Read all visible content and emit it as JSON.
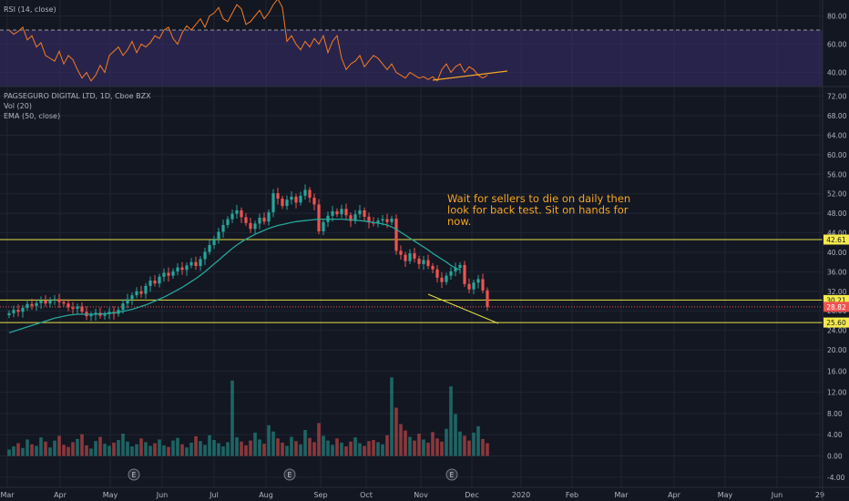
{
  "colors": {
    "background": "#131722",
    "grid": "#1f2533",
    "axis_text": "#b2b5be",
    "up": "#26a69a",
    "down": "#ef5350",
    "ema": "#26a69a",
    "rsi": "#f57b22",
    "rsi_band": "#3b2d6b",
    "level_line": "#e6e045",
    "annotation": "#f5a623",
    "price_tag": "#f5eb4a",
    "last_tag": "#ef5350"
  },
  "legend": {
    "rsi": "RSI (14, close)",
    "symbol": "PAGSEGURO DIGITAL LTD, 1D, Cboe BZX",
    "vol": "Vol (20)",
    "ema": "EMA (50, close)"
  },
  "annotation": {
    "lines": [
      "Wait for sellers to die on daily then",
      "look for back test. Sit on hands for",
      "now."
    ]
  },
  "chart_data": [
    {
      "type": "line",
      "name": "rsi-pane",
      "title": "RSI (14, close)",
      "ylim": [
        30,
        90
      ],
      "yticks": [
        "80.00",
        "60.00",
        "40.00"
      ],
      "ytick_values": [
        80,
        60,
        40
      ],
      "band": [
        30,
        70
      ],
      "series": [
        {
          "values": [
            70,
            67,
            69,
            72,
            63,
            66,
            58,
            61,
            52,
            50,
            48,
            55,
            46,
            52,
            49,
            42,
            36,
            40,
            34,
            38,
            45,
            40,
            52,
            55,
            58,
            52,
            56,
            62,
            54,
            60,
            58,
            61,
            66,
            64,
            70,
            72,
            64,
            60,
            68,
            73,
            70,
            74,
            78,
            72,
            80,
            82,
            86,
            78,
            76,
            82,
            88,
            85,
            74,
            76,
            80,
            84,
            78,
            82,
            88,
            92,
            86,
            62,
            66,
            60,
            56,
            62,
            58,
            64,
            60,
            66,
            54,
            62,
            66,
            50,
            42,
            46,
            48,
            52,
            44,
            48,
            52,
            50,
            46,
            42,
            46,
            40,
            38,
            36,
            40,
            38,
            36,
            37,
            35,
            37,
            34,
            42,
            46,
            40,
            44,
            46,
            40,
            44,
            42,
            38,
            36,
            38
          ]
        }
      ]
    },
    {
      "type": "candlestick",
      "name": "price-pane",
      "title": "PAGSEGURO DIGITAL LTD, 1D, Cboe BZX",
      "ylim": [
        17.4,
        73.8
      ],
      "yticks": [
        "72.00",
        "68.00",
        "64.00",
        "60.00",
        "56.00",
        "52.00",
        "48.00",
        "44.00",
        "40.00",
        "36.00",
        "32.00",
        "28.00",
        "24.00",
        "20.00"
      ],
      "ytick_values": [
        72,
        68,
        64,
        60,
        56,
        52,
        48,
        44,
        40,
        36,
        32,
        28,
        24,
        20
      ],
      "x_labels": [
        "Mar",
        "Apr",
        "May",
        "Jun",
        "Jul",
        "Aug",
        "Sep",
        "Oct",
        "Nov",
        "Dec",
        "2020",
        "Feb",
        "Mar",
        "Apr",
        "May",
        "Jun",
        "29"
      ],
      "horizontal_levels": [
        {
          "value": 42.61,
          "label": "42.61"
        },
        {
          "value": 30.21,
          "label": "30.21"
        },
        {
          "value": 25.6,
          "label": "25.60"
        }
      ],
      "last_price": {
        "value": 28.82,
        "label": "28.82"
      },
      "close": [
        27.5,
        28.2,
        27.8,
        28.6,
        29.4,
        29.0,
        29.6,
        30.1,
        29.5,
        30.2,
        30.4,
        29.8,
        29.5,
        28.7,
        28.4,
        28.9,
        27.8,
        26.9,
        27.2,
        27.6,
        27.0,
        27.3,
        27.8,
        27.4,
        28.2,
        29.5,
        30.4,
        31.2,
        32.0,
        31.5,
        33.1,
        34.2,
        33.6,
        35.0,
        35.8,
        35.2,
        36.1,
        36.9,
        36.4,
        37.3,
        38.0,
        37.2,
        38.6,
        40.1,
        41.5,
        42.8,
        44.2,
        45.6,
        46.8,
        47.9,
        48.6,
        47.2,
        46.0,
        44.8,
        45.9,
        47.1,
        46.3,
        48.2,
        52.1,
        51.0,
        49.5,
        50.8,
        51.4,
        50.2,
        51.6,
        52.8,
        51.2,
        49.8,
        44.3,
        46.2,
        47.5,
        48.4,
        47.8,
        48.9,
        47.6,
        46.4,
        47.8,
        48.6,
        47.3,
        46.1,
        45.9,
        46.5,
        46.8,
        46.2,
        46.9,
        40.3,
        39.5,
        38.2,
        39.8,
        38.7,
        37.6,
        38.4,
        37.2,
        36.5,
        34.8,
        33.9,
        35.2,
        36.1,
        36.8,
        37.4,
        33.5,
        32.4,
        33.8,
        34.5,
        32.2,
        28.8
      ],
      "ema_50": [
        23.5,
        23.8,
        24.1,
        24.4,
        24.7,
        25.0,
        25.3,
        25.6,
        25.9,
        26.2,
        26.5,
        26.7,
        26.9,
        27.1,
        27.2,
        27.3,
        27.3,
        27.3,
        27.3,
        27.3,
        27.4,
        27.4,
        27.5,
        27.6,
        27.7,
        27.9,
        28.1,
        28.3,
        28.6,
        28.9,
        29.2,
        29.6,
        30.0,
        30.4,
        30.8,
        31.3,
        31.8,
        32.3,
        32.8,
        33.4,
        34.0,
        34.6,
        35.3,
        36.0,
        36.8,
        37.6,
        38.4,
        39.2,
        40.0,
        40.8,
        41.5,
        42.1,
        42.7,
        43.2,
        43.7,
        44.1,
        44.5,
        44.9,
        45.2,
        45.5,
        45.7,
        45.9,
        46.1,
        46.3,
        46.4,
        46.5,
        46.6,
        46.7,
        46.8,
        46.8,
        46.8,
        46.8,
        46.8,
        46.8,
        46.7,
        46.7,
        46.6,
        46.5,
        46.4,
        46.3,
        46.1,
        46.0,
        45.8,
        45.6,
        45.2,
        44.7,
        44.1,
        43.5,
        42.9,
        42.3,
        41.7,
        41.1,
        40.5,
        39.8,
        39.2,
        38.6,
        38.0,
        37.3,
        36.8,
        36.4
      ]
    },
    {
      "type": "bar",
      "name": "volume-pane",
      "title": "Vol (20)",
      "ylim": [
        -5.4,
        17.6
      ],
      "yticks": [
        "16.00",
        "12.00",
        "8.00",
        "4.00",
        "0.00",
        "-4.00"
      ],
      "ytick_values": [
        16,
        12,
        8,
        4,
        0,
        -4
      ],
      "values": [
        1.2,
        1.8,
        2.4,
        1.5,
        3.1,
        2.2,
        1.9,
        3.5,
        2.7,
        1.6,
        2.9,
        3.8,
        2.1,
        1.7,
        2.6,
        3.2,
        4.1,
        2.0,
        1.4,
        2.8,
        3.6,
        2.3,
        1.9,
        2.5,
        3.0,
        4.2,
        2.7,
        1.8,
        2.2,
        3.3,
        2.6,
        1.9,
        2.4,
        3.1,
        2.0,
        1.7,
        2.9,
        3.4,
        2.2,
        1.6,
        2.5,
        3.7,
        2.8,
        2.1,
        3.9,
        3.0,
        2.4,
        1.8,
        2.6,
        14.2,
        3.5,
        2.7,
        2.0,
        2.9,
        4.4,
        3.1,
        2.3,
        5.8,
        4.6,
        3.3,
        2.5,
        1.9,
        3.6,
        2.8,
        2.2,
        4.9,
        3.4,
        2.6,
        6.2,
        3.8,
        2.9,
        2.1,
        3.3,
        2.5,
        1.8,
        2.7,
        3.5,
        2.4,
        1.9,
        2.8,
        3.0,
        2.6,
        2.2,
        3.9,
        14.8,
        9.1,
        6.0,
        4.8,
        3.6,
        2.9,
        4.2,
        3.1,
        2.5,
        4.5,
        3.3,
        2.7,
        5.1,
        13.1,
        7.9,
        4.6,
        3.8,
        2.9,
        4.4,
        5.6,
        3.2,
        2.4
      ],
      "earnings_markers": [
        "E",
        "E",
        "E",
        "E"
      ]
    }
  ]
}
